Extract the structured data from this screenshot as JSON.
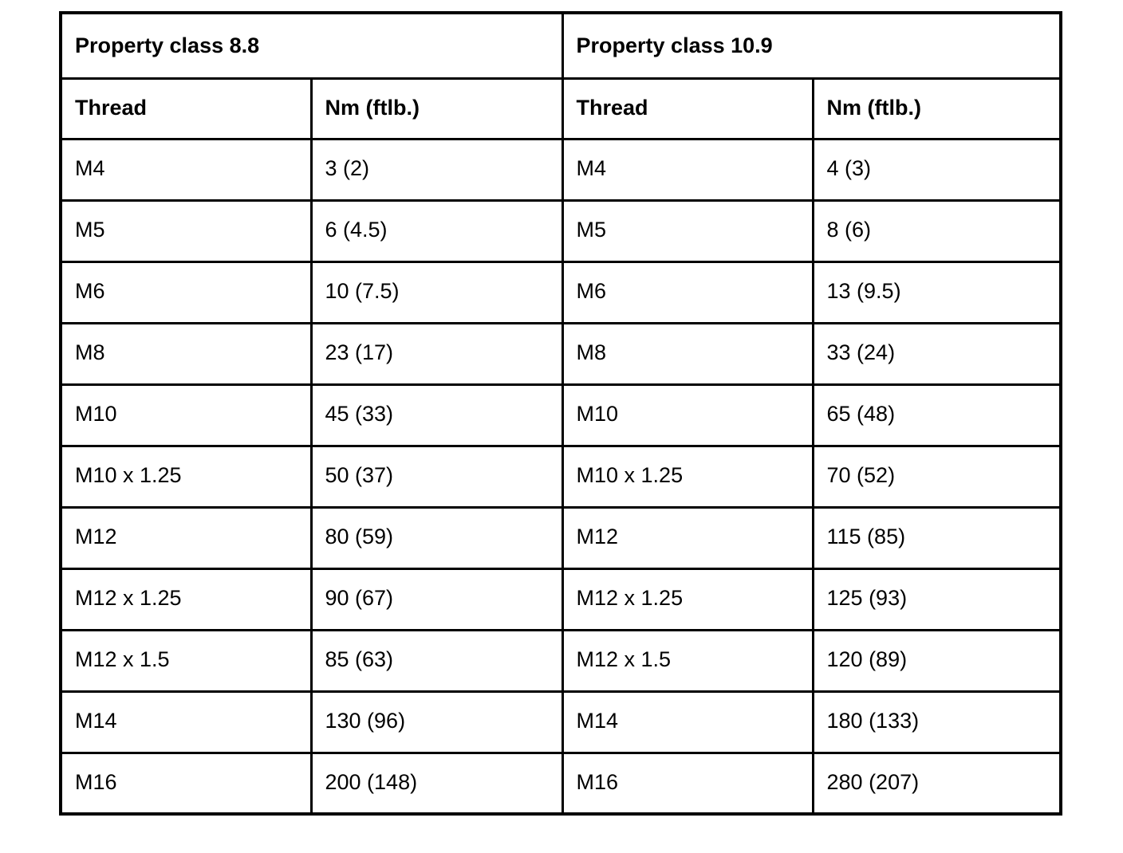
{
  "table": {
    "sections": [
      {
        "title": "Property class 8.8",
        "columns": [
          "Thread",
          "Nm (ftlb.)"
        ]
      },
      {
        "title": "Property class 10.9",
        "columns": [
          "Thread",
          "Nm (ftlb.)"
        ]
      }
    ],
    "rows": [
      [
        "M4",
        "3 (2)",
        "M4",
        "4 (3)"
      ],
      [
        "M5",
        "6 (4.5)",
        "M5",
        "8 (6)"
      ],
      [
        "M6",
        "10 (7.5)",
        "M6",
        "13 (9.5)"
      ],
      [
        "M8",
        "23 (17)",
        "M8",
        "33 (24)"
      ],
      [
        "M10",
        "45 (33)",
        "M10",
        "65 (48)"
      ],
      [
        "M10 x 1.25",
        "50 (37)",
        "M10 x 1.25",
        "70 (52)"
      ],
      [
        "M12",
        "80 (59)",
        "M12",
        "115 (85)"
      ],
      [
        "M12 x 1.25",
        "90 (67)",
        "M12 x 1.25",
        "125 (93)"
      ],
      [
        "M12 x 1.5",
        "85 (63)",
        "M12 x 1.5",
        "120 (89)"
      ],
      [
        "M14",
        "130 (96)",
        "M14",
        "180 (133)"
      ],
      [
        "M16",
        "200 (148)",
        "M16",
        "280 (207)"
      ]
    ]
  },
  "colors": {
    "border": "#000000",
    "background": "#ffffff",
    "text": "#000000"
  }
}
